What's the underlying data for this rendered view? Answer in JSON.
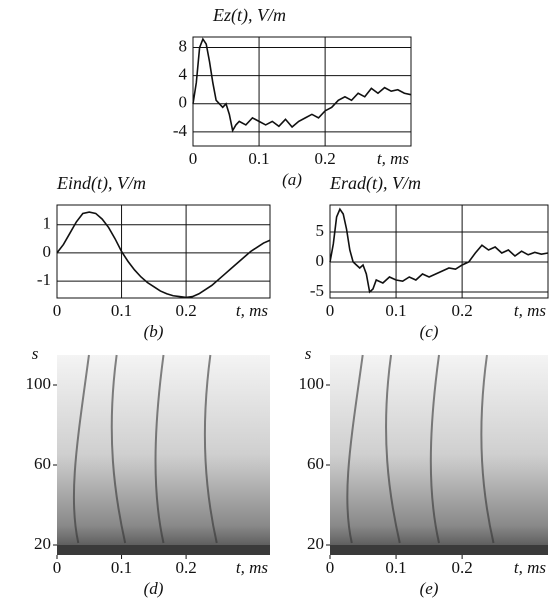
{
  "chart_data": [
    {
      "type": "line",
      "title": "Ez(t), V/m",
      "caption": "(a)",
      "x_label": "t, ms",
      "xlim": [
        0,
        0.33
      ],
      "xticks": [
        0,
        0.1,
        0.2
      ],
      "ylim": [
        -6,
        9.5
      ],
      "yticks": [
        8,
        4,
        0,
        -4
      ],
      "grid": true,
      "series": [
        {
          "color": "#111111",
          "x": [
            0,
            0.005,
            0.01,
            0.015,
            0.02,
            0.025,
            0.03,
            0.035,
            0.04,
            0.045,
            0.05,
            0.055,
            0.06,
            0.065,
            0.07,
            0.08,
            0.09,
            0.1,
            0.11,
            0.12,
            0.13,
            0.14,
            0.15,
            0.16,
            0.17,
            0.18,
            0.19,
            0.2,
            0.21,
            0.22,
            0.23,
            0.24,
            0.25,
            0.26,
            0.27,
            0.28,
            0.29,
            0.3,
            0.31,
            0.32,
            0.33
          ],
          "values": [
            0,
            3,
            8,
            9.2,
            8.5,
            6,
            3,
            0.5,
            0,
            -0.5,
            0,
            -1.5,
            -3.8,
            -3,
            -2.5,
            -3,
            -2,
            -2.5,
            -3,
            -2.5,
            -3.2,
            -2.2,
            -3.3,
            -2.5,
            -2,
            -1.5,
            -2,
            -1,
            -0.5,
            0.5,
            1,
            0.5,
            1.5,
            1,
            2.2,
            1.5,
            2.3,
            1.8,
            2,
            1.5,
            1.3
          ]
        }
      ]
    },
    {
      "type": "line",
      "title": "Eind(t), V/m",
      "caption": "(b)",
      "x_label": "t, ms",
      "xlim": [
        0,
        0.33
      ],
      "xticks": [
        0,
        0.1,
        0.2
      ],
      "ylim": [
        -1.6,
        1.7
      ],
      "yticks": [
        1,
        0,
        -1
      ],
      "grid": true,
      "series": [
        {
          "color": "#111111",
          "x": [
            0,
            0.01,
            0.02,
            0.03,
            0.04,
            0.05,
            0.06,
            0.07,
            0.08,
            0.09,
            0.1,
            0.11,
            0.12,
            0.13,
            0.14,
            0.15,
            0.16,
            0.17,
            0.18,
            0.19,
            0.2,
            0.21,
            0.22,
            0.23,
            0.24,
            0.25,
            0.26,
            0.27,
            0.28,
            0.29,
            0.3,
            0.31,
            0.32,
            0.33
          ],
          "values": [
            0,
            0.3,
            0.7,
            1.1,
            1.4,
            1.45,
            1.4,
            1.2,
            0.9,
            0.5,
            0.05,
            -0.3,
            -0.6,
            -0.85,
            -1.05,
            -1.2,
            -1.35,
            -1.45,
            -1.52,
            -1.55,
            -1.58,
            -1.55,
            -1.45,
            -1.3,
            -1.15,
            -0.95,
            -0.75,
            -0.55,
            -0.35,
            -0.15,
            0.05,
            0.2,
            0.35,
            0.45
          ]
        }
      ]
    },
    {
      "type": "line",
      "title": "Erad(t), V/m",
      "caption": "(c)",
      "x_label": "t, ms",
      "xlim": [
        0,
        0.33
      ],
      "xticks": [
        0,
        0.1,
        0.2
      ],
      "ylim": [
        -6,
        9.5
      ],
      "yticks": [
        5,
        0,
        -5
      ],
      "grid": true,
      "series": [
        {
          "color": "#111111",
          "x": [
            0,
            0.005,
            0.01,
            0.015,
            0.02,
            0.025,
            0.03,
            0.035,
            0.04,
            0.045,
            0.05,
            0.055,
            0.06,
            0.065,
            0.07,
            0.08,
            0.09,
            0.1,
            0.11,
            0.12,
            0.13,
            0.14,
            0.15,
            0.16,
            0.17,
            0.18,
            0.19,
            0.2,
            0.21,
            0.22,
            0.23,
            0.24,
            0.25,
            0.26,
            0.27,
            0.28,
            0.29,
            0.3,
            0.31,
            0.32,
            0.33
          ],
          "values": [
            0,
            3,
            7.5,
            8.8,
            8,
            5.5,
            2,
            0,
            -0.5,
            -1,
            -0.5,
            -2,
            -5,
            -4.5,
            -3,
            -3.5,
            -2.5,
            -3,
            -3.2,
            -2.5,
            -3,
            -2,
            -2.5,
            -2,
            -1.5,
            -1,
            -1.2,
            -0.5,
            0,
            1.5,
            2.8,
            2,
            2.5,
            1.5,
            2,
            1,
            1.8,
            1.2,
            1.6,
            1.3,
            1.5
          ]
        }
      ]
    },
    {
      "type": "heatmap",
      "y_label": "s",
      "caption": "(d)",
      "x_label": "t, ms",
      "xlim": [
        0,
        0.33
      ],
      "xticks": [
        0,
        0.1,
        0.2
      ],
      "ylim": [
        15,
        115
      ],
      "yticks": [
        20,
        60,
        100
      ]
    },
    {
      "type": "heatmap",
      "y_label": "s",
      "caption": "(e)",
      "x_label": "t, ms",
      "xlim": [
        0,
        0.33
      ],
      "xticks": [
        0,
        0.1,
        0.2
      ],
      "ylim": [
        15,
        115
      ],
      "yticks": [
        20,
        60,
        100
      ]
    }
  ]
}
